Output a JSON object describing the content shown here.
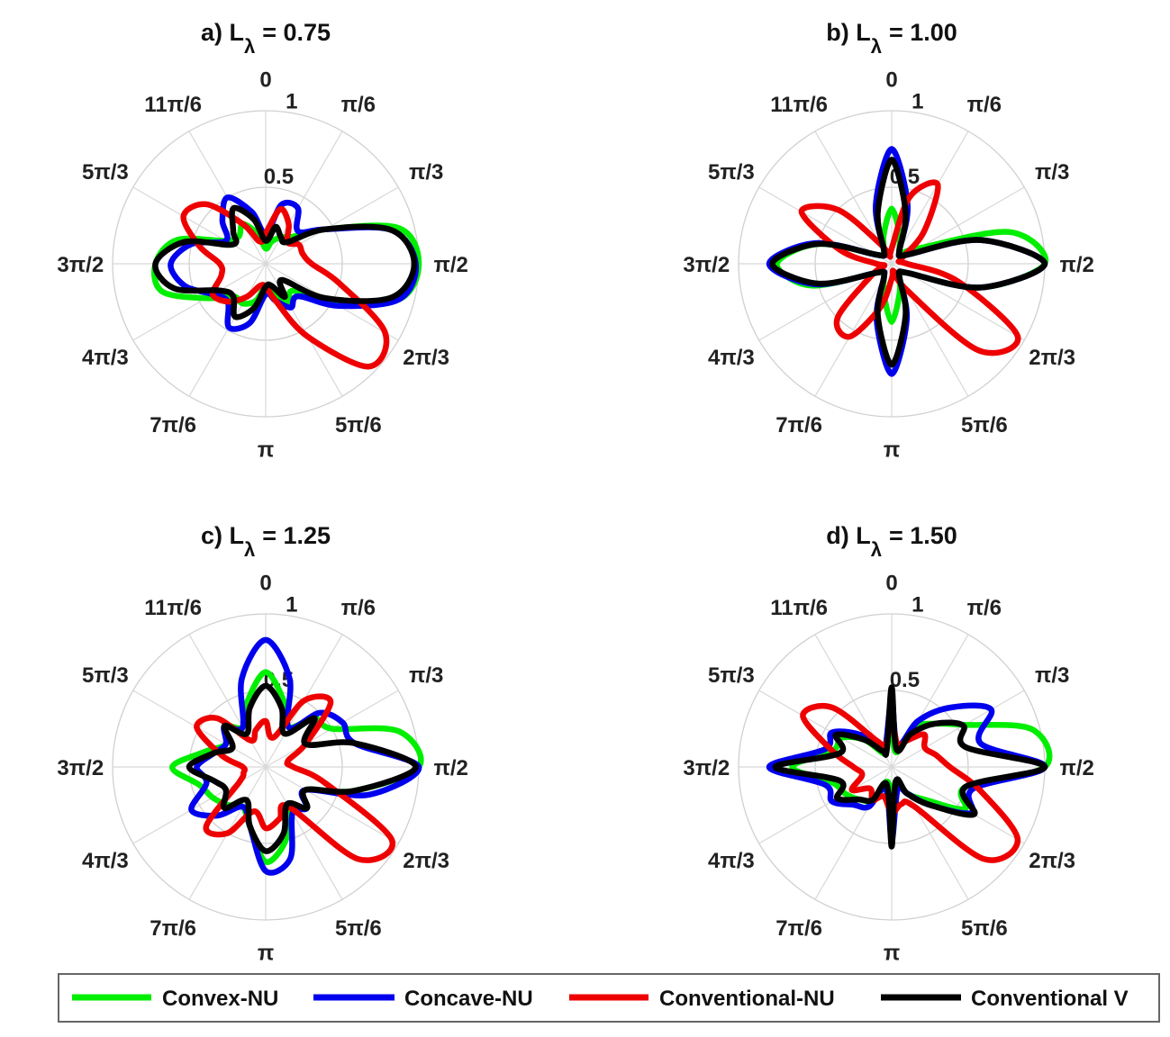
{
  "chart_data": [
    {
      "type": "polar",
      "panel": "a)",
      "title": {
        "prefix": "a) L",
        "subscript": "λ",
        "suffix": "= 0.75"
      },
      "theta_direction": "clockwise",
      "theta_zero": "top",
      "theta_tick_labels": [
        "0",
        "π/6",
        "π/3",
        "π/2",
        "2π/3",
        "5π/6",
        "π",
        "7π/6",
        "4π/3",
        "3π/2",
        "5π/3",
        "11π/6"
      ],
      "r_tick_labels": [
        "0.5",
        "1"
      ],
      "rlim": [
        0,
        1
      ],
      "grid": true,
      "theta": [
        0,
        0.262,
        0.524,
        0.785,
        1.047,
        1.309,
        1.571,
        1.833,
        2.094,
        2.356,
        2.618,
        2.88,
        3.142,
        3.403,
        3.665,
        3.927,
        4.189,
        4.451,
        4.712,
        4.974,
        5.236,
        5.498,
        5.76,
        6.021
      ],
      "series": [
        {
          "name": "Convex-NU",
          "color": "#00ee00",
          "r": [
            0.1,
            0.15,
            0.2,
            0.25,
            0.45,
            0.9,
            1.0,
            0.9,
            0.5,
            0.25,
            0.3,
            0.2,
            0.15,
            0.25,
            0.3,
            0.3,
            0.45,
            0.7,
            0.72,
            0.6,
            0.3,
            0.25,
            0.3,
            0.2
          ]
        },
        {
          "name": "Concave-NU",
          "color": "#0000ee",
          "r": [
            0.2,
            0.4,
            0.42,
            0.3,
            0.45,
            0.85,
            0.98,
            0.9,
            0.55,
            0.3,
            0.33,
            0.25,
            0.2,
            0.4,
            0.48,
            0.35,
            0.4,
            0.55,
            0.62,
            0.5,
            0.3,
            0.4,
            0.5,
            0.35
          ]
        },
        {
          "name": "Conventional-NU",
          "color": "#ee0000",
          "r": [
            0.2,
            0.37,
            0.3,
            0.2,
            0.25,
            0.25,
            0.3,
            0.5,
            0.9,
            0.95,
            0.55,
            0.25,
            0.15,
            0.15,
            0.25,
            0.35,
            0.4,
            0.3,
            0.3,
            0.45,
            0.62,
            0.55,
            0.3,
            0.15
          ]
        },
        {
          "name": "Conventional V",
          "color": "#000000",
          "r": [
            0.15,
            0.25,
            0.2,
            0.2,
            0.45,
            0.85,
            0.97,
            0.85,
            0.45,
            0.15,
            0.25,
            0.15,
            0.15,
            0.3,
            0.4,
            0.3,
            0.35,
            0.62,
            0.72,
            0.55,
            0.25,
            0.3,
            0.42,
            0.3
          ]
        }
      ]
    },
    {
      "type": "polar",
      "panel": "b)",
      "title": {
        "prefix": "b) L",
        "subscript": "λ",
        "suffix": "= 1.00"
      },
      "theta_direction": "clockwise",
      "theta_zero": "top",
      "theta_tick_labels": [
        "0",
        "π/6",
        "π/3",
        "π/2",
        "2π/3",
        "5π/6",
        "π",
        "7π/6",
        "4π/3",
        "3π/2",
        "5π/3",
        "11π/6"
      ],
      "r_tick_labels": [
        "0.5",
        "1"
      ],
      "rlim": [
        0,
        1
      ],
      "grid": true,
      "theta": [
        0,
        0.262,
        0.524,
        0.785,
        1.047,
        1.309,
        1.571,
        1.833,
        2.094,
        2.356,
        2.618,
        2.88,
        3.142,
        3.403,
        3.665,
        3.927,
        4.189,
        4.451,
        4.712,
        4.974,
        5.236,
        5.498,
        5.76,
        6.021
      ],
      "series": [
        {
          "name": "Convex-NU",
          "color": "#00ee00",
          "r": [
            0.36,
            0.2,
            0.1,
            0.1,
            0.2,
            0.8,
            1.0,
            0.6,
            0.12,
            0.08,
            0.1,
            0.2,
            0.38,
            0.2,
            0.1,
            0.08,
            0.12,
            0.55,
            0.75,
            0.5,
            0.12,
            0.08,
            0.1,
            0.2
          ]
        },
        {
          "name": "Concave-NU",
          "color": "#0000ee",
          "r": [
            0.75,
            0.4,
            0.1,
            0.08,
            0.12,
            0.6,
            1.0,
            0.6,
            0.12,
            0.08,
            0.1,
            0.38,
            0.72,
            0.38,
            0.1,
            0.08,
            0.12,
            0.52,
            0.8,
            0.52,
            0.12,
            0.08,
            0.1,
            0.4
          ]
        },
        {
          "name": "Conventional-NU",
          "color": "#ee0000",
          "r": [
            0.1,
            0.45,
            0.6,
            0.3,
            0.08,
            0.05,
            0.1,
            0.45,
            0.95,
            0.8,
            0.2,
            0.05,
            0.1,
            0.3,
            0.55,
            0.5,
            0.15,
            0.05,
            0.1,
            0.35,
            0.68,
            0.5,
            0.15,
            0.05
          ]
        },
        {
          "name": "Conventional V",
          "color": "#000000",
          "r": [
            0.68,
            0.35,
            0.1,
            0.08,
            0.12,
            0.6,
            1.0,
            0.6,
            0.12,
            0.08,
            0.1,
            0.35,
            0.66,
            0.35,
            0.1,
            0.08,
            0.12,
            0.5,
            0.78,
            0.5,
            0.12,
            0.08,
            0.1,
            0.35
          ]
        }
      ]
    },
    {
      "type": "polar",
      "panel": "c)",
      "title": {
        "prefix": "c) L",
        "subscript": "λ",
        "suffix": "= 1.25"
      },
      "theta_direction": "clockwise",
      "theta_zero": "top",
      "theta_tick_labels": [
        "0",
        "π/6",
        "π/3",
        "π/2",
        "2π/3",
        "5π/6",
        "π",
        "7π/6",
        "4π/3",
        "3π/2",
        "5π/3",
        "11π/6"
      ],
      "r_tick_labels": [
        "0.5",
        "1"
      ],
      "rlim": [
        0,
        1
      ],
      "grid": true,
      "theta": [
        0,
        0.262,
        0.524,
        0.785,
        1.047,
        1.309,
        1.571,
        1.833,
        2.094,
        2.356,
        2.618,
        2.88,
        3.142,
        3.403,
        3.665,
        3.927,
        4.189,
        4.451,
        4.712,
        4.974,
        5.236,
        5.498,
        5.76,
        6.021
      ],
      "series": [
        {
          "name": "Convex-NU",
          "color": "#00ee00",
          "r": [
            0.62,
            0.45,
            0.3,
            0.45,
            0.5,
            0.9,
            1.0,
            0.6,
            0.3,
            0.38,
            0.3,
            0.5,
            0.62,
            0.4,
            0.3,
            0.35,
            0.4,
            0.45,
            0.61,
            0.4,
            0.3,
            0.38,
            0.3,
            0.45
          ]
        },
        {
          "name": "Concave-NU",
          "color": "#0000ee",
          "r": [
            0.83,
            0.6,
            0.3,
            0.5,
            0.58,
            0.6,
            1.0,
            0.7,
            0.3,
            0.38,
            0.35,
            0.62,
            0.68,
            0.4,
            0.3,
            0.45,
            0.56,
            0.4,
            0.45,
            0.35,
            0.3,
            0.38,
            0.3,
            0.6
          ]
        },
        {
          "name": "Conventional-NU",
          "color": "#ee0000",
          "r": [
            0.3,
            0.2,
            0.5,
            0.6,
            0.3,
            0.15,
            0.18,
            0.4,
            0.95,
            0.85,
            0.3,
            0.35,
            0.4,
            0.3,
            0.5,
            0.55,
            0.2,
            0.15,
            0.15,
            0.3,
            0.52,
            0.45,
            0.2,
            0.25
          ]
        },
        {
          "name": "Conventional V",
          "color": "#000000",
          "r": [
            0.53,
            0.4,
            0.25,
            0.45,
            0.3,
            0.6,
            0.98,
            0.6,
            0.3,
            0.38,
            0.28,
            0.45,
            0.55,
            0.4,
            0.25,
            0.38,
            0.3,
            0.35,
            0.5,
            0.35,
            0.25,
            0.38,
            0.25,
            0.4
          ]
        }
      ]
    },
    {
      "type": "polar",
      "panel": "d)",
      "title": {
        "prefix": "d) L",
        "subscript": "λ",
        "suffix": "= 1.50"
      },
      "theta_direction": "clockwise",
      "theta_zero": "top",
      "theta_tick_labels": [
        "0",
        "π/6",
        "π/3",
        "π/2",
        "2π/3",
        "5π/6",
        "π",
        "7π/6",
        "4π/3",
        "3π/2",
        "5π/3",
        "11π/6"
      ],
      "r_tick_labels": [
        "0.5",
        "1"
      ],
      "rlim": [
        0,
        1
      ],
      "grid": true,
      "theta": [
        0,
        0.262,
        0.524,
        0.785,
        1.047,
        1.309,
        1.571,
        1.833,
        2.094,
        2.356,
        2.618,
        2.88,
        3.142,
        3.403,
        3.665,
        3.927,
        4.189,
        4.451,
        4.712,
        4.974,
        5.236,
        5.498,
        5.76,
        6.021
      ],
      "series": [
        {
          "name": "Convex-NU",
          "color": "#00ee00",
          "r": [
            0.35,
            0.1,
            0.3,
            0.4,
            0.55,
            0.95,
            1.0,
            0.5,
            0.55,
            0.3,
            0.2,
            0.1,
            0.3,
            0.1,
            0.25,
            0.3,
            0.35,
            0.4,
            0.65,
            0.4,
            0.38,
            0.25,
            0.1,
            0.15
          ]
        },
        {
          "name": "Concave-NU",
          "color": "#0000ee",
          "r": [
            0.45,
            0.15,
            0.35,
            0.55,
            0.75,
            0.6,
            1.0,
            0.55,
            0.6,
            0.35,
            0.2,
            0.15,
            0.48,
            0.15,
            0.3,
            0.35,
            0.45,
            0.45,
            0.8,
            0.45,
            0.45,
            0.3,
            0.15,
            0.15
          ]
        },
        {
          "name": "Conventional-NU",
          "color": "#ee0000",
          "r": [
            0.3,
            0.15,
            0.2,
            0.3,
            0.25,
            0.3,
            0.38,
            0.6,
            0.95,
            0.85,
            0.3,
            0.25,
            0.3,
            0.2,
            0.25,
            0.2,
            0.3,
            0.2,
            0.25,
            0.4,
            0.67,
            0.55,
            0.2,
            0.15
          ]
        },
        {
          "name": "Conventional V",
          "color": "#000000",
          "r": [
            0.52,
            0.12,
            0.25,
            0.4,
            0.54,
            0.5,
            1.0,
            0.5,
            0.62,
            0.35,
            0.2,
            0.1,
            0.52,
            0.12,
            0.25,
            0.3,
            0.41,
            0.35,
            0.76,
            0.35,
            0.42,
            0.25,
            0.12,
            0.12
          ]
        }
      ]
    }
  ],
  "legend": {
    "placement": "bottom",
    "items": [
      {
        "label": "Convex-NU",
        "color": "#00ee00"
      },
      {
        "label": "Concave-NU",
        "color": "#0000ee"
      },
      {
        "label": "Conventional-NU",
        "color": "#ee0000"
      },
      {
        "label": "Conventional V",
        "color": "#000000"
      }
    ]
  }
}
